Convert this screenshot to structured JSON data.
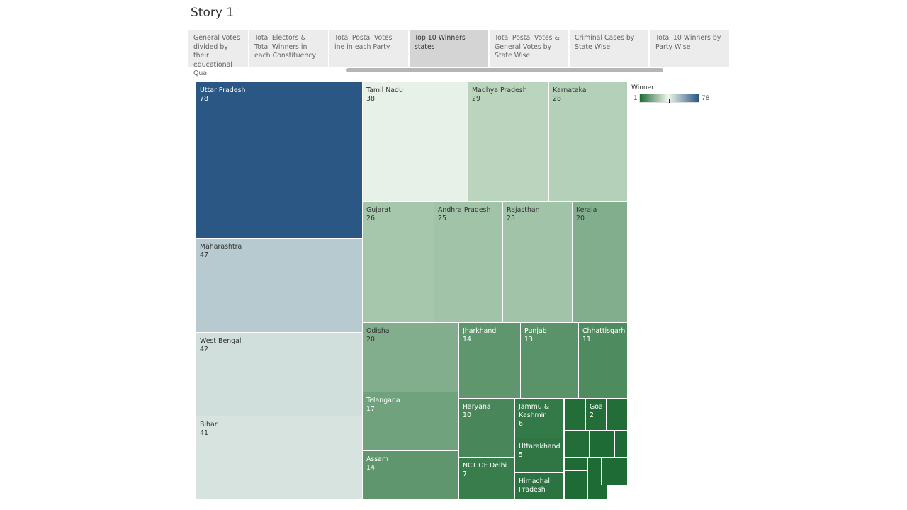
{
  "story": {
    "title": "Story 1"
  },
  "tabs": [
    {
      "label": "General Votes divided by their educational Qua..",
      "active": false
    },
    {
      "label": " Total Electors &  Total Winners in each Constituency",
      "active": false
    },
    {
      "label": "Total Postal Votes ine in each Party",
      "active": false
    },
    {
      "label": "Top 10 Winners states",
      "active": true
    },
    {
      "label": "Total Postal Votes & General Votes by State Wise",
      "active": false
    },
    {
      "label": "Criminal Cases by State Wise",
      "active": false
    },
    {
      "label": "Total 10 Winners by Party Wise",
      "active": false
    }
  ],
  "legend": {
    "title": "Winner",
    "min": "1",
    "max": "78"
  },
  "colors": {
    "low": "#1f6b35",
    "mid": "#eef7ec",
    "high": "#2a5783"
  },
  "chart_data": {
    "type": "treemap",
    "measure": "Winner",
    "color_range": [
      1,
      78
    ],
    "items": [
      {
        "name": "Uttar Pradesh",
        "value": 78,
        "label": true
      },
      {
        "name": "Maharashtra",
        "value": 47,
        "label": true
      },
      {
        "name": "West Bengal",
        "value": 42,
        "label": true
      },
      {
        "name": "Bihar",
        "value": 41,
        "label": true
      },
      {
        "name": "Tamil Nadu",
        "value": 38,
        "label": true
      },
      {
        "name": "Madhya Pradesh",
        "value": 29,
        "label": true
      },
      {
        "name": "Karnataka",
        "value": 28,
        "label": true
      },
      {
        "name": "Gujarat",
        "value": 26,
        "label": true
      },
      {
        "name": "Andhra Pradesh",
        "value": 25,
        "label": true
      },
      {
        "name": "Rajasthan",
        "value": 25,
        "label": true
      },
      {
        "name": "Kerala",
        "value": 20,
        "label": true
      },
      {
        "name": "Odisha",
        "value": 20,
        "label": true
      },
      {
        "name": "Telangana",
        "value": 17,
        "label": true
      },
      {
        "name": "Assam",
        "value": 14,
        "label": true
      },
      {
        "name": "Jharkhand",
        "value": 14,
        "label": true
      },
      {
        "name": "Punjab",
        "value": 13,
        "label": true
      },
      {
        "name": "Chhattisgarh",
        "value": 11,
        "label": true
      },
      {
        "name": "Haryana",
        "value": 10,
        "label": true
      },
      {
        "name": "NCT OF Delhi",
        "value": 7,
        "label": true
      },
      {
        "name": "Jammu & Kashmir",
        "value": 6,
        "label": true
      },
      {
        "name": "Uttarakhand",
        "value": 5,
        "label": true
      },
      {
        "name": "Himachal Pradesh",
        "value": 4,
        "label": true,
        "show_value": false
      },
      {
        "name": "Goa",
        "value": 2,
        "label": true
      },
      {
        "name": "",
        "value": 2,
        "label": false
      },
      {
        "name": "",
        "value": 2,
        "label": false
      },
      {
        "name": "",
        "value": 2,
        "label": false
      },
      {
        "name": "",
        "value": 1,
        "label": false
      },
      {
        "name": "",
        "value": 1,
        "label": false
      },
      {
        "name": "",
        "value": 1,
        "label": false
      },
      {
        "name": "",
        "value": 1,
        "label": false
      },
      {
        "name": "",
        "value": 1,
        "label": false
      },
      {
        "name": "",
        "value": 1,
        "label": false
      },
      {
        "name": "",
        "value": 1,
        "label": false
      },
      {
        "name": "",
        "value": 1,
        "label": false
      },
      {
        "name": "",
        "value": 1,
        "label": false
      }
    ]
  }
}
